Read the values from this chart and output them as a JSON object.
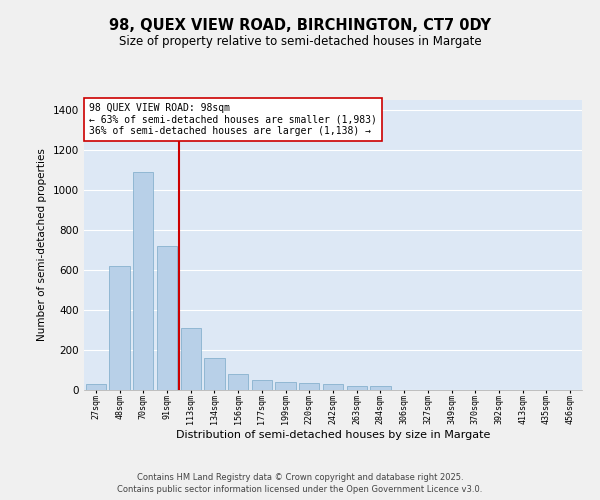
{
  "title_line1": "98, QUEX VIEW ROAD, BIRCHINGTON, CT7 0DY",
  "title_line2": "Size of property relative to semi-detached houses in Margate",
  "xlabel": "Distribution of semi-detached houses by size in Margate",
  "ylabel": "Number of semi-detached properties",
  "categories": [
    "27sqm",
    "48sqm",
    "70sqm",
    "91sqm",
    "113sqm",
    "134sqm",
    "156sqm",
    "177sqm",
    "199sqm",
    "220sqm",
    "242sqm",
    "263sqm",
    "284sqm",
    "306sqm",
    "327sqm",
    "349sqm",
    "370sqm",
    "392sqm",
    "413sqm",
    "435sqm",
    "456sqm"
  ],
  "values": [
    30,
    620,
    1090,
    720,
    310,
    160,
    80,
    50,
    40,
    35,
    28,
    22,
    20,
    0,
    0,
    0,
    0,
    0,
    0,
    0,
    0
  ],
  "bar_color": "#b8d0e8",
  "bar_edge_color": "#7aaac8",
  "red_line_color": "#cc0000",
  "annotation_line1": "98 QUEX VIEW ROAD: 98sqm",
  "annotation_line2": "← 63% of semi-detached houses are smaller (1,983)",
  "annotation_line3": "36% of semi-detached houses are larger (1,138) →",
  "annotation_box_facecolor": "#ffffff",
  "annotation_box_edgecolor": "#cc0000",
  "ylim_max": 1450,
  "yticks": [
    0,
    200,
    400,
    600,
    800,
    1000,
    1200,
    1400
  ],
  "plot_bg_color": "#dde8f5",
  "fig_bg_color": "#f0f0f0",
  "grid_color": "#ffffff",
  "footer_line1": "Contains HM Land Registry data © Crown copyright and database right 2025.",
  "footer_line2": "Contains public sector information licensed under the Open Government Licence v3.0."
}
